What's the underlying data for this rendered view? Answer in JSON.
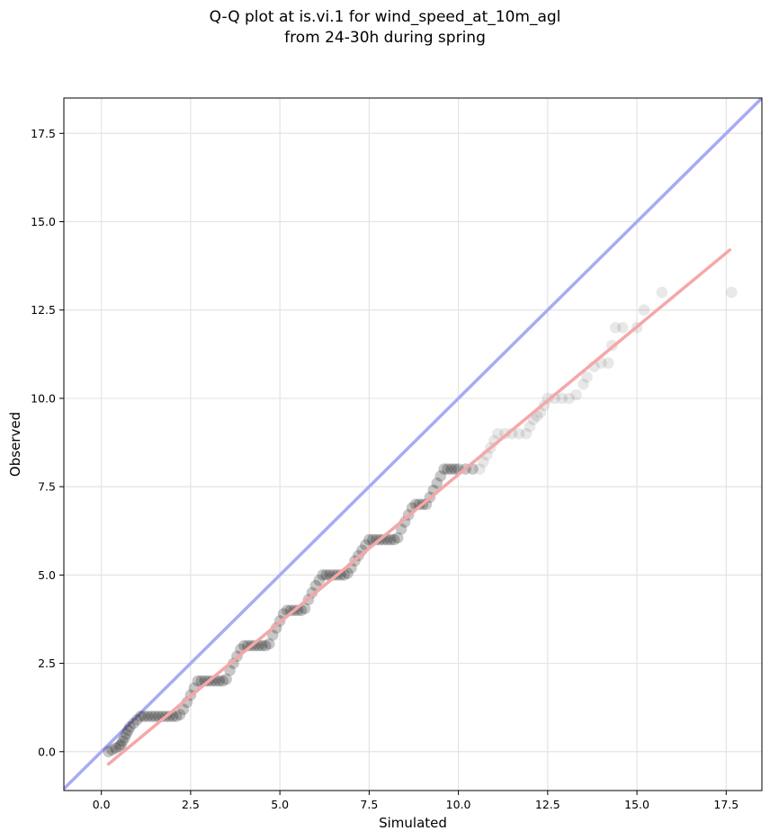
{
  "chart_data": {
    "type": "scatter",
    "title_lines": [
      "Q-Q plot at is.vi.1 for wind_speed_at_10m_agl",
      "from 24-30h during spring"
    ],
    "xlabel": "Simulated",
    "ylabel": "Observed",
    "xlim": [
      -1.05,
      18.5
    ],
    "ylim": [
      -1.1,
      18.5
    ],
    "xticks": [
      0.0,
      2.5,
      5.0,
      7.5,
      10.0,
      12.5,
      15.0,
      17.5
    ],
    "yticks": [
      0.0,
      2.5,
      5.0,
      7.5,
      10.0,
      12.5,
      15.0,
      17.5
    ],
    "xtick_labels": [
      "0.0",
      "2.5",
      "5.0",
      "7.5",
      "10.0",
      "12.5",
      "15.0",
      "17.5"
    ],
    "ytick_labels": [
      "0.0",
      "2.5",
      "5.0",
      "7.5",
      "10.0",
      "12.5",
      "15.0",
      "17.5"
    ],
    "grid": true,
    "reference_line": {
      "from": [
        -1.05,
        -1.05
      ],
      "to": [
        18.5,
        18.5
      ],
      "color": "#a9aaf4"
    },
    "fit_line": {
      "from": [
        0.2,
        -0.35
      ],
      "to": [
        17.6,
        14.2
      ],
      "color": "#f5a7a7"
    },
    "marker_color": "#000000",
    "series": [
      {
        "points": [
          [
            0.2,
            0.0
          ],
          [
            0.3,
            0.05
          ],
          [
            0.4,
            0.1
          ],
          [
            0.5,
            0.15
          ],
          [
            0.55,
            0.2
          ],
          [
            0.6,
            0.3
          ],
          [
            0.65,
            0.4
          ],
          [
            0.7,
            0.5
          ],
          [
            0.75,
            0.6
          ],
          [
            0.8,
            0.7
          ],
          [
            0.9,
            0.8
          ],
          [
            1.0,
            0.9
          ],
          [
            1.1,
            1.0
          ],
          [
            1.2,
            1.0
          ],
          [
            1.3,
            1.0
          ],
          [
            1.4,
            1.0
          ],
          [
            1.5,
            1.0
          ],
          [
            1.6,
            1.0
          ],
          [
            1.7,
            1.0
          ],
          [
            1.8,
            1.0
          ],
          [
            1.9,
            1.0
          ],
          [
            2.0,
            1.0
          ],
          [
            2.1,
            1.0
          ],
          [
            2.2,
            1.05
          ],
          [
            2.3,
            1.2
          ],
          [
            2.4,
            1.4
          ],
          [
            2.5,
            1.6
          ],
          [
            2.6,
            1.8
          ],
          [
            2.7,
            2.0
          ],
          [
            2.8,
            2.0
          ],
          [
            2.9,
            2.0
          ],
          [
            3.0,
            2.0
          ],
          [
            3.1,
            2.0
          ],
          [
            3.2,
            2.0
          ],
          [
            3.3,
            2.0
          ],
          [
            3.4,
            2.0
          ],
          [
            3.5,
            2.05
          ],
          [
            3.6,
            2.3
          ],
          [
            3.7,
            2.5
          ],
          [
            3.8,
            2.7
          ],
          [
            3.9,
            2.9
          ],
          [
            4.0,
            3.0
          ],
          [
            4.1,
            3.0
          ],
          [
            4.2,
            3.0
          ],
          [
            4.3,
            3.0
          ],
          [
            4.4,
            3.0
          ],
          [
            4.5,
            3.0
          ],
          [
            4.6,
            3.0
          ],
          [
            4.7,
            3.05
          ],
          [
            4.8,
            3.3
          ],
          [
            4.9,
            3.5
          ],
          [
            5.0,
            3.7
          ],
          [
            5.1,
            3.9
          ],
          [
            5.2,
            4.0
          ],
          [
            5.3,
            4.0
          ],
          [
            5.4,
            4.0
          ],
          [
            5.5,
            4.0
          ],
          [
            5.6,
            4.0
          ],
          [
            5.7,
            4.05
          ],
          [
            5.8,
            4.3
          ],
          [
            5.9,
            4.5
          ],
          [
            6.0,
            4.7
          ],
          [
            6.1,
            4.85
          ],
          [
            6.2,
            5.0
          ],
          [
            6.3,
            5.0
          ],
          [
            6.4,
            5.0
          ],
          [
            6.5,
            5.0
          ],
          [
            6.6,
            5.0
          ],
          [
            6.7,
            5.0
          ],
          [
            6.8,
            5.0
          ],
          [
            6.9,
            5.05
          ],
          [
            7.0,
            5.2
          ],
          [
            7.1,
            5.4
          ],
          [
            7.2,
            5.55
          ],
          [
            7.3,
            5.7
          ],
          [
            7.4,
            5.85
          ],
          [
            7.5,
            6.0
          ],
          [
            7.6,
            6.0
          ],
          [
            7.7,
            6.0
          ],
          [
            7.8,
            6.0
          ],
          [
            7.9,
            6.0
          ],
          [
            8.0,
            6.0
          ],
          [
            8.1,
            6.0
          ],
          [
            8.2,
            6.0
          ],
          [
            8.3,
            6.05
          ],
          [
            8.4,
            6.3
          ],
          [
            8.5,
            6.5
          ],
          [
            8.6,
            6.7
          ],
          [
            8.7,
            6.9
          ],
          [
            8.8,
            7.0
          ],
          [
            8.9,
            7.0
          ],
          [
            9.0,
            7.0
          ],
          [
            9.1,
            7.0
          ],
          [
            9.2,
            7.2
          ],
          [
            9.3,
            7.4
          ],
          [
            9.4,
            7.6
          ],
          [
            9.5,
            7.8
          ],
          [
            9.6,
            8.0
          ],
          [
            9.7,
            8.0
          ],
          [
            9.8,
            8.0
          ],
          [
            9.9,
            8.0
          ],
          [
            10.0,
            8.0
          ],
          [
            10.2,
            8.0
          ],
          [
            10.4,
            8.0
          ],
          [
            10.6,
            8.0
          ],
          [
            10.7,
            8.2
          ],
          [
            10.8,
            8.4
          ],
          [
            10.9,
            8.6
          ],
          [
            11.0,
            8.8
          ],
          [
            11.1,
            9.0
          ],
          [
            11.3,
            9.0
          ],
          [
            11.5,
            9.0
          ],
          [
            11.7,
            9.0
          ],
          [
            11.9,
            9.0
          ],
          [
            12.0,
            9.2
          ],
          [
            12.1,
            9.4
          ],
          [
            12.2,
            9.5
          ],
          [
            12.3,
            9.6
          ],
          [
            12.4,
            9.8
          ],
          [
            12.5,
            10.0
          ],
          [
            12.7,
            10.0
          ],
          [
            12.9,
            10.0
          ],
          [
            13.1,
            10.0
          ],
          [
            13.3,
            10.1
          ],
          [
            13.5,
            10.4
          ],
          [
            13.6,
            10.6
          ],
          [
            13.8,
            10.9
          ],
          [
            14.0,
            11.0
          ],
          [
            14.2,
            11.0
          ],
          [
            14.3,
            11.5
          ],
          [
            14.4,
            12.0
          ],
          [
            14.6,
            12.0
          ],
          [
            15.0,
            12.0
          ],
          [
            15.2,
            12.5
          ],
          [
            15.7,
            13.0
          ],
          [
            17.65,
            13.0
          ]
        ]
      }
    ]
  }
}
